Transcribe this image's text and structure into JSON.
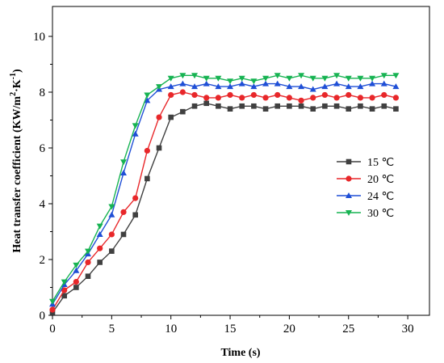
{
  "chart_data": {
    "type": "line",
    "xlabel": "Time (s)",
    "ylabel_main": "Heat transfer coefficient (KW/m",
    "ylabel_sup1": "2",
    "ylabel_mid": "·K",
    "ylabel_sup2": "-1",
    "ylabel_end": ")",
    "xlim": [
      0,
      32
    ],
    "ylim": [
      0,
      11
    ],
    "xticks": [
      0,
      5,
      10,
      15,
      20,
      25,
      30
    ],
    "yticks": [
      0,
      2,
      4,
      6,
      8,
      10
    ],
    "x": [
      0,
      1,
      2,
      3,
      4,
      5,
      6,
      7,
      8,
      9,
      10,
      11,
      12,
      13,
      14,
      15,
      16,
      17,
      18,
      19,
      20,
      21,
      22,
      23,
      24,
      25,
      26,
      27,
      28,
      29
    ],
    "legend_position": "center-right",
    "grid": false,
    "series": [
      {
        "name": "15 ℃",
        "color": "#404040",
        "marker": "square",
        "values": [
          0.1,
          0.7,
          1.0,
          1.4,
          1.9,
          2.3,
          2.9,
          3.6,
          4.9,
          6.0,
          7.1,
          7.3,
          7.5,
          7.6,
          7.5,
          7.4,
          7.5,
          7.5,
          7.4,
          7.5,
          7.5,
          7.5,
          7.4,
          7.5,
          7.5,
          7.4,
          7.5,
          7.4,
          7.5,
          7.4
        ]
      },
      {
        "name": "20 ℃",
        "color": "#e8272a",
        "marker": "circle",
        "values": [
          0.2,
          0.9,
          1.2,
          1.9,
          2.4,
          2.9,
          3.7,
          4.2,
          5.9,
          7.1,
          7.9,
          8.0,
          7.9,
          7.8,
          7.8,
          7.9,
          7.8,
          7.9,
          7.8,
          7.9,
          7.8,
          7.7,
          7.8,
          7.9,
          7.8,
          7.9,
          7.8,
          7.8,
          7.9,
          7.8
        ]
      },
      {
        "name": "24 ℃",
        "color": "#1f4fd6",
        "marker": "triangle-up",
        "values": [
          0.4,
          1.1,
          1.6,
          2.2,
          2.9,
          3.6,
          5.1,
          6.5,
          7.7,
          8.1,
          8.2,
          8.3,
          8.2,
          8.3,
          8.2,
          8.2,
          8.3,
          8.2,
          8.3,
          8.3,
          8.2,
          8.2,
          8.1,
          8.2,
          8.3,
          8.2,
          8.2,
          8.3,
          8.3,
          8.2
        ]
      },
      {
        "name": "30 ℃",
        "color": "#17b352",
        "marker": "triangle-down",
        "values": [
          0.5,
          1.2,
          1.8,
          2.3,
          3.2,
          3.9,
          5.5,
          6.8,
          7.9,
          8.2,
          8.5,
          8.6,
          8.6,
          8.5,
          8.5,
          8.4,
          8.5,
          8.4,
          8.5,
          8.6,
          8.5,
          8.6,
          8.5,
          8.5,
          8.6,
          8.5,
          8.5,
          8.5,
          8.6,
          8.6
        ]
      }
    ]
  }
}
